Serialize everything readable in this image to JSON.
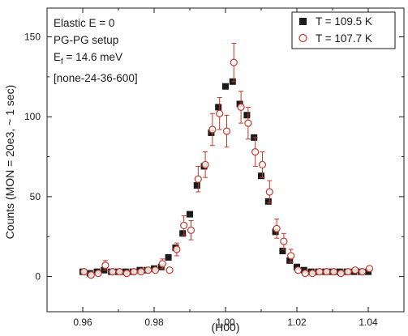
{
  "chart_data": {
    "type": "scatter",
    "xlabel": "(H00)",
    "ylabel": "Counts (MON = 20e3, ~ 1 sec)",
    "xlim": [
      0.95,
      1.05
    ],
    "ylim": [
      -22,
      168
    ],
    "xticks": [
      0.96,
      0.98,
      1.0,
      1.02,
      1.04
    ],
    "xtick_labels": [
      "0.96",
      "0.98",
      "1.00",
      "1.02",
      "1.04"
    ],
    "yticks": [
      0,
      50,
      100,
      150
    ],
    "ytick_labels": [
      "0",
      "50",
      "100",
      "150"
    ],
    "grid": false,
    "legend_position": "top-right",
    "annotations": [
      {
        "text": "Elastic E = 0"
      },
      {
        "text": "PG-PG setup"
      },
      {
        "text": "E",
        "sub": "f",
        "rest": " = 14.6 meV"
      },
      {
        "text": "[none-24-36-600]"
      }
    ],
    "series": [
      {
        "name": "T = 109.5 K",
        "marker": "filled-square",
        "color": "#1a1a1a",
        "x": [
          0.96,
          0.962,
          0.964,
          0.966,
          0.968,
          0.97,
          0.972,
          0.974,
          0.976,
          0.978,
          0.98,
          0.982,
          0.984,
          0.986,
          0.988,
          0.99,
          0.992,
          0.994,
          0.996,
          0.998,
          1.0,
          1.002,
          1.004,
          1.006,
          1.008,
          1.01,
          1.012,
          1.014,
          1.016,
          1.018,
          1.02,
          1.022,
          1.024,
          1.026,
          1.028,
          1.03,
          1.032,
          1.034,
          1.036,
          1.038,
          1.04
        ],
        "y": [
          3,
          2,
          3,
          4,
          3,
          3,
          3,
          3,
          4,
          4,
          5,
          6,
          12,
          18,
          27,
          39,
          57,
          69,
          90,
          106,
          119,
          122,
          108,
          101,
          87,
          63,
          47,
          28,
          16,
          10,
          6,
          4,
          3,
          3,
          3,
          3,
          3,
          3,
          3,
          3,
          3
        ]
      },
      {
        "name": "T = 107.7 K",
        "marker": "open-circle",
        "color": "#c0392b",
        "x": [
          0.96,
          0.962,
          0.964,
          0.966,
          0.968,
          0.97,
          0.972,
          0.974,
          0.976,
          0.978,
          0.98,
          0.982,
          0.984,
          0.986,
          0.988,
          0.99,
          0.992,
          0.994,
          0.996,
          0.998,
          1.0,
          1.002,
          1.004,
          1.006,
          1.008,
          1.01,
          1.012,
          1.014,
          1.016,
          1.018,
          1.02,
          1.022,
          1.024,
          1.026,
          1.028,
          1.03,
          1.032,
          1.034,
          1.036,
          1.038,
          1.04
        ],
        "y": [
          3,
          1,
          2,
          7,
          3,
          3,
          2,
          3,
          3,
          4,
          4,
          8,
          4,
          17,
          32,
          29,
          61,
          70,
          92,
          102,
          91,
          134,
          106,
          96,
          78,
          70,
          53,
          30,
          22,
          13,
          4,
          2,
          2,
          3,
          3,
          3,
          2,
          3,
          4,
          3,
          5
        ],
        "yerr": [
          2,
          2,
          2,
          3,
          2,
          2,
          2,
          2,
          2,
          2,
          2,
          3,
          2,
          4,
          6,
          6,
          8,
          8,
          10,
          10,
          10,
          12,
          10,
          10,
          9,
          8,
          7,
          6,
          5,
          4,
          2,
          2,
          2,
          2,
          2,
          2,
          2,
          2,
          2,
          2,
          2
        ]
      }
    ]
  }
}
